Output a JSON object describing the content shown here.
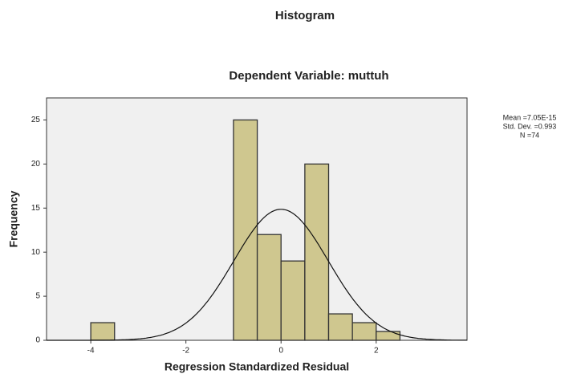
{
  "chart_data": {
    "type": "histogram",
    "title": "Histogram",
    "subtitle": "Dependent Variable: muttuh",
    "x_label": "Regression Standardized Residual",
    "y_label": "Frequency",
    "bins": [
      -4,
      -3.5,
      -3,
      -2.5,
      -2,
      -1.5,
      -1,
      -0.5,
      0,
      0.5,
      1,
      1.5,
      2,
      2.5
    ],
    "values": [
      2,
      0,
      0,
      0,
      0,
      0,
      25,
      12,
      9,
      20,
      3,
      2,
      1
    ],
    "color": "#cfc78f",
    "xlim": [
      -4.93,
      3.91
    ],
    "ylim": [
      0,
      27.5
    ],
    "xticks": [
      -4,
      -2,
      0,
      2
    ],
    "yticks": [
      0,
      5,
      10,
      15,
      20,
      25
    ],
    "stats": [
      {
        "value": 7.05e-15,
        "label": "Mean =7.05E-15"
      },
      {
        "value": 0.993,
        "label": "Std. Dev. =0.993"
      },
      {
        "value": 74,
        "label": "N =74"
      }
    ]
  }
}
